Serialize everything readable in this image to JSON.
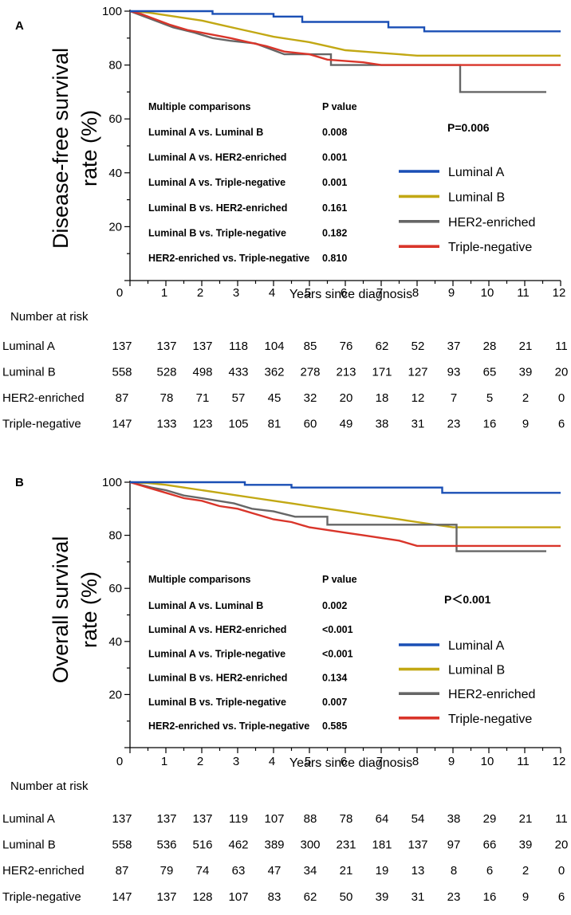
{
  "chart_data": [
    {
      "type": "line",
      "panel": "A",
      "ylabel_line1": "Disease-free survival",
      "ylabel_line2": "rate (%)",
      "xlabel": "Years since diagnosis",
      "xlim": [
        0,
        12
      ],
      "ylim": [
        0,
        100
      ],
      "x_ticks": [
        "0",
        "1",
        "2",
        "3",
        "4",
        "5",
        "6",
        "7",
        "8",
        "9",
        "10",
        "11",
        "12"
      ],
      "y_ticks": [
        "100",
        "80",
        "60",
        "40",
        "20"
      ],
      "p_overall": "P=0.006",
      "comparisons_header": "Multiple comparisons",
      "pvalue_header": "P value",
      "comparisons": [
        {
          "label": "Luminal A vs. Luminal B",
          "p": "0.008"
        },
        {
          "label": "Luminal A vs. HER2-enriched",
          "p": "0.001"
        },
        {
          "label": "Luminal A vs. Triple-negative",
          "p": "0.001"
        },
        {
          "label": "Luminal B vs. HER2-enriched",
          "p": "0.161"
        },
        {
          "label": "Luminal B vs. Triple-negative",
          "p": "0.182"
        },
        {
          "label": "HER2-enriched vs. Triple-negative",
          "p": "0.810"
        }
      ],
      "series": [
        {
          "name": "Luminal A",
          "color": "#1a4fb5",
          "x": [
            0,
            2.3,
            2.3,
            4.0,
            4.0,
            4.8,
            4.8,
            7.2,
            7.2,
            8.2,
            8.2,
            12
          ],
          "y": [
            100,
            100,
            99,
            99,
            98,
            98,
            96,
            96,
            94,
            94,
            92.5,
            92.5
          ]
        },
        {
          "name": "Luminal B",
          "color": "#c2a814",
          "x": [
            0,
            0.5,
            1,
            1.5,
            2,
            2.5,
            3,
            3.5,
            4,
            4.5,
            5,
            5.5,
            6,
            6.5,
            7,
            7.5,
            8,
            9,
            10,
            11,
            12
          ],
          "y": [
            100,
            99.5,
            98.5,
            97.5,
            96.5,
            95,
            93.5,
            92,
            90.5,
            89.5,
            88.5,
            87,
            85.5,
            85,
            84.5,
            84,
            83.5,
            83.5,
            83.5,
            83.5,
            83.5
          ]
        },
        {
          "name": "HER2-enriched",
          "color": "#666666",
          "x": [
            0,
            0.4,
            0.8,
            1.2,
            1.8,
            2.3,
            2.8,
            3.5,
            4.3,
            5.6,
            5.6,
            7,
            7,
            9.2,
            9.2,
            11.6
          ],
          "y": [
            100,
            98,
            96,
            94,
            92,
            90,
            89,
            88,
            84,
            84,
            80,
            80,
            80,
            80,
            70,
            70
          ]
        },
        {
          "name": "Triple-negative",
          "color": "#d9352a",
          "x": [
            0,
            0.3,
            0.7,
            1.1,
            1.6,
            2.2,
            2.8,
            3.3,
            3.8,
            4.3,
            5,
            5.5,
            6.5,
            7,
            12
          ],
          "y": [
            100,
            99,
            97,
            95,
            93,
            91.5,
            90,
            88.5,
            87,
            85,
            84,
            82,
            81,
            80,
            80
          ]
        }
      ],
      "number_at_risk_title": "Number at risk",
      "risk_rows": [
        {
          "label": "Luminal A",
          "values": [
            "137",
            "137",
            "137",
            "118",
            "104",
            "85",
            "76",
            "62",
            "52",
            "37",
            "28",
            "21",
            "11"
          ]
        },
        {
          "label": "Luminal B",
          "values": [
            "558",
            "528",
            "498",
            "433",
            "362",
            "278",
            "213",
            "171",
            "127",
            "93",
            "65",
            "39",
            "20"
          ]
        },
        {
          "label": "HER2-enriched",
          "values": [
            "87",
            "78",
            "71",
            "57",
            "45",
            "32",
            "20",
            "18",
            "12",
            "7",
            "5",
            "2",
            "0"
          ]
        },
        {
          "label": "Triple-negative",
          "values": [
            "147",
            "133",
            "123",
            "105",
            "81",
            "60",
            "49",
            "38",
            "31",
            "23",
            "16",
            "9",
            "6"
          ]
        }
      ]
    },
    {
      "type": "line",
      "panel": "B",
      "ylabel_line1": "Overall survival",
      "ylabel_line2": "rate (%)",
      "xlabel": "Years since diagnosis",
      "xlim": [
        0,
        12
      ],
      "ylim": [
        0,
        100
      ],
      "x_ticks": [
        "0",
        "1",
        "2",
        "3",
        "4",
        "5",
        "6",
        "7",
        "8",
        "9",
        "10",
        "11",
        "12"
      ],
      "y_ticks": [
        "100",
        "80",
        "60",
        "40",
        "20"
      ],
      "p_overall": "P＜0.001",
      "comparisons_header": "Multiple comparisons",
      "pvalue_header": "P value",
      "comparisons": [
        {
          "label": "Luminal A vs. Luminal B",
          "p": "0.002"
        },
        {
          "label": "Luminal A vs. HER2-enriched",
          "p": "<0.001"
        },
        {
          "label": "Luminal A vs. Triple-negative",
          "p": "<0.001"
        },
        {
          "label": "Luminal B vs. HER2-enriched",
          "p": "0.134"
        },
        {
          "label": "Luminal B vs. Triple-negative",
          "p": "0.007"
        },
        {
          "label": "HER2-enriched vs. Triple-negative",
          "p": "0.585"
        }
      ],
      "series": [
        {
          "name": "Luminal A",
          "color": "#1a4fb5",
          "x": [
            0,
            3.2,
            3.2,
            4.5,
            4.5,
            8.7,
            8.7,
            12
          ],
          "y": [
            100,
            100,
            99,
            99,
            98,
            98,
            96,
            96
          ]
        },
        {
          "name": "Luminal B",
          "color": "#c2a814",
          "x": [
            0,
            0.5,
            1,
            1.5,
            2,
            2.5,
            3,
            3.5,
            4,
            4.5,
            5,
            5.5,
            6,
            6.5,
            7,
            7.5,
            8,
            8.5,
            9,
            10,
            11,
            12
          ],
          "y": [
            100,
            99.7,
            99,
            98,
            97,
            96,
            95,
            94,
            93,
            92,
            91,
            90,
            89,
            88,
            87,
            86,
            85,
            84,
            83,
            83,
            83,
            83
          ]
        },
        {
          "name": "HER2-enriched",
          "color": "#666666",
          "x": [
            0,
            0.6,
            1.0,
            1.5,
            2.0,
            2.9,
            3.4,
            4.0,
            4.6,
            5.5,
            5.5,
            6.0,
            9.1,
            9.1,
            11.6
          ],
          "y": [
            100,
            98,
            97,
            95,
            94,
            92,
            90,
            89,
            87,
            87,
            84,
            84,
            84,
            74,
            74
          ]
        },
        {
          "name": "Triple-negative",
          "color": "#d9352a",
          "x": [
            0,
            0.5,
            1.0,
            1.5,
            2.0,
            2.5,
            3.0,
            3.5,
            4.0,
            4.5,
            5.0,
            5.5,
            6.0,
            6.5,
            7.0,
            7.5,
            8.0,
            9.0,
            10,
            12
          ],
          "y": [
            100,
            98,
            96,
            94,
            93,
            91,
            90,
            88,
            86,
            85,
            83,
            82,
            81,
            80,
            79,
            78,
            76,
            76,
            76,
            76
          ]
        }
      ],
      "number_at_risk_title": "Number at risk",
      "risk_rows": [
        {
          "label": "Luminal A",
          "values": [
            "137",
            "137",
            "137",
            "119",
            "107",
            "88",
            "78",
            "64",
            "54",
            "38",
            "29",
            "21",
            "11"
          ]
        },
        {
          "label": "Luminal B",
          "values": [
            "558",
            "536",
            "516",
            "462",
            "389",
            "300",
            "231",
            "181",
            "137",
            "97",
            "66",
            "39",
            "20"
          ]
        },
        {
          "label": "HER2-enriched",
          "values": [
            "87",
            "79",
            "74",
            "63",
            "47",
            "34",
            "21",
            "19",
            "13",
            "8",
            "6",
            "2",
            "0"
          ]
        },
        {
          "label": "Triple-negative",
          "values": [
            "147",
            "137",
            "128",
            "107",
            "83",
            "62",
            "50",
            "39",
            "31",
            "23",
            "16",
            "9",
            "6"
          ]
        }
      ]
    }
  ]
}
